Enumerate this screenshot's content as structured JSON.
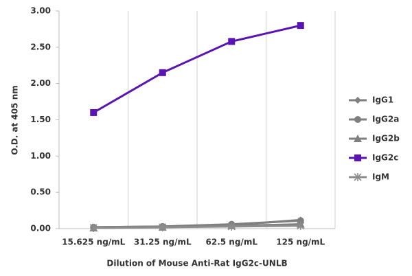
{
  "chart_data": {
    "type": "line",
    "y_label": "O.D. at 405 nm",
    "x_label": "Dilution of Mouse Anti-Rat IgG2c-UNLB",
    "categories": [
      "15.625 ng/mL",
      "31.25 ng/mL",
      "62.5 ng/mL",
      "125 ng/mL"
    ],
    "series": [
      {
        "name": "IgG1",
        "color": "#7f7f7f",
        "marker": "diamond",
        "values": [
          0.02,
          0.03,
          0.05,
          0.12
        ]
      },
      {
        "name": "IgG2a",
        "color": "#7f7f7f",
        "marker": "circle",
        "values": [
          0.02,
          0.03,
          0.06,
          0.11
        ]
      },
      {
        "name": "IgG2b",
        "color": "#7f7f7f",
        "marker": "triangle",
        "values": [
          0.01,
          0.02,
          0.04,
          0.06
        ]
      },
      {
        "name": "IgG2c",
        "color": "#5a14b4",
        "marker": "square",
        "values": [
          1.6,
          2.15,
          2.58,
          2.8
        ]
      },
      {
        "name": "IgM",
        "color": "#8c8c8c",
        "marker": "star",
        "values": [
          0.01,
          0.02,
          0.03,
          0.04
        ]
      }
    ],
    "ylim": [
      0,
      3
    ],
    "yticks": [
      {
        "value": 0,
        "label": "0.00"
      },
      {
        "value": 0.5,
        "label": "0.50"
      },
      {
        "value": 1,
        "label": "1.00"
      },
      {
        "value": 1.5,
        "label": "1.50"
      },
      {
        "value": 2,
        "label": "2.00"
      },
      {
        "value": 2.5,
        "label": "2.50"
      },
      {
        "value": 3,
        "label": "3.00"
      }
    ],
    "grid": true,
    "legend": "right"
  }
}
